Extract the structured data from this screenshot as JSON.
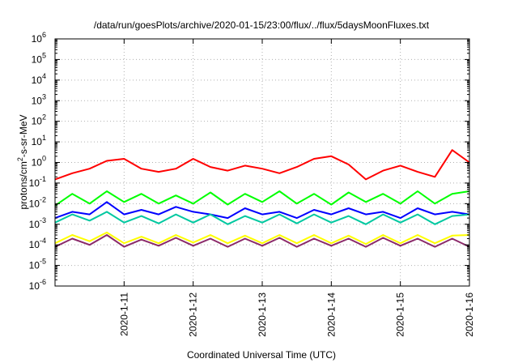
{
  "chart_data": {
    "type": "line",
    "title": "/data/run/goesPlots/archive/2020-01-15/23:00/flux/../flux/5daysMoonFluxes.txt",
    "xlabel": "Coordinated Universal Time (UTC)",
    "ylabel": "protons/cm²-s-sr-MeV",
    "y_scale": "log",
    "ylim": [
      1e-06,
      1000000.0
    ],
    "y_ticks": [
      {
        "value": 1e-06,
        "base": "10",
        "exp": "-6"
      },
      {
        "value": 1e-05,
        "base": "10",
        "exp": "-5"
      },
      {
        "value": 0.0001,
        "base": "10",
        "exp": "-4"
      },
      {
        "value": 0.001,
        "base": "10",
        "exp": "-3"
      },
      {
        "value": 0.01,
        "base": "10",
        "exp": "-2"
      },
      {
        "value": 0.1,
        "base": "10",
        "exp": "-1"
      },
      {
        "value": 1,
        "base": "10",
        "exp": "0"
      },
      {
        "value": 10,
        "base": "10",
        "exp": "1"
      },
      {
        "value": 100,
        "base": "10",
        "exp": "2"
      },
      {
        "value": 1000.0,
        "base": "10",
        "exp": "3"
      },
      {
        "value": 10000.0,
        "base": "10",
        "exp": "4"
      },
      {
        "value": 100000.0,
        "base": "10",
        "exp": "5"
      },
      {
        "value": 1000000.0,
        "base": "10",
        "exp": "6"
      }
    ],
    "xlim": [
      "2020-01-10T00:00",
      "2020-01-16T00:00"
    ],
    "x_ticks": [
      "2020-1-11",
      "2020-1-12",
      "2020-1-13",
      "2020-1-14",
      "2020-1-15",
      "2020-1-16"
    ],
    "x_tick_dates": [
      "2020-01-11",
      "2020-01-12",
      "2020-01-13",
      "2020-01-14",
      "2020-01-15",
      "2020-01-16"
    ],
    "grid": true,
    "legend": "none",
    "series": [
      {
        "color": "#ff0000",
        "x": [
          "2020-01-10T00:00",
          "2020-01-10T06:00",
          "2020-01-10T12:00",
          "2020-01-10T18:00",
          "2020-01-11T00:00",
          "2020-01-11T06:00",
          "2020-01-11T12:00",
          "2020-01-11T18:00",
          "2020-01-12T00:00",
          "2020-01-12T06:00",
          "2020-01-12T12:00",
          "2020-01-12T18:00",
          "2020-01-13T00:00",
          "2020-01-13T06:00",
          "2020-01-13T12:00",
          "2020-01-13T18:00",
          "2020-01-14T00:00",
          "2020-01-14T06:00",
          "2020-01-14T12:00",
          "2020-01-14T18:00",
          "2020-01-15T00:00",
          "2020-01-15T06:00",
          "2020-01-15T12:00",
          "2020-01-15T18:00",
          "2020-01-16T00:00"
        ],
        "values": [
          0.15,
          0.3,
          0.5,
          1.2,
          1.5,
          0.5,
          0.35,
          0.5,
          1.5,
          0.6,
          0.4,
          0.7,
          0.5,
          0.3,
          0.6,
          1.5,
          2.0,
          0.8,
          0.15,
          0.4,
          0.7,
          0.35,
          0.2,
          4.0,
          1.0
        ]
      },
      {
        "color": "#00ff00",
        "x": [
          "2020-01-10T00:00",
          "2020-01-10T06:00",
          "2020-01-10T12:00",
          "2020-01-10T18:00",
          "2020-01-11T00:00",
          "2020-01-11T06:00",
          "2020-01-11T12:00",
          "2020-01-11T18:00",
          "2020-01-12T00:00",
          "2020-01-12T06:00",
          "2020-01-12T12:00",
          "2020-01-12T18:00",
          "2020-01-13T00:00",
          "2020-01-13T06:00",
          "2020-01-13T12:00",
          "2020-01-13T18:00",
          "2020-01-14T00:00",
          "2020-01-14T06:00",
          "2020-01-14T12:00",
          "2020-01-14T18:00",
          "2020-01-15T00:00",
          "2020-01-15T06:00",
          "2020-01-15T12:00",
          "2020-01-15T18:00",
          "2020-01-16T00:00"
        ],
        "values": [
          0.008,
          0.03,
          0.01,
          0.04,
          0.012,
          0.03,
          0.01,
          0.025,
          0.01,
          0.035,
          0.009,
          0.03,
          0.012,
          0.04,
          0.01,
          0.03,
          0.009,
          0.035,
          0.012,
          0.03,
          0.01,
          0.04,
          0.01,
          0.03,
          0.04
        ]
      },
      {
        "color": "#0000ff",
        "x": [
          "2020-01-10T00:00",
          "2020-01-10T06:00",
          "2020-01-10T12:00",
          "2020-01-10T18:00",
          "2020-01-11T00:00",
          "2020-01-11T06:00",
          "2020-01-11T12:00",
          "2020-01-11T18:00",
          "2020-01-12T00:00",
          "2020-01-12T06:00",
          "2020-01-12T12:00",
          "2020-01-12T18:00",
          "2020-01-13T00:00",
          "2020-01-13T06:00",
          "2020-01-13T12:00",
          "2020-01-13T18:00",
          "2020-01-14T00:00",
          "2020-01-14T06:00",
          "2020-01-14T12:00",
          "2020-01-14T18:00",
          "2020-01-15T00:00",
          "2020-01-15T06:00",
          "2020-01-15T12:00",
          "2020-01-15T18:00",
          "2020-01-16T00:00"
        ],
        "values": [
          0.002,
          0.004,
          0.003,
          0.012,
          0.003,
          0.005,
          0.003,
          0.007,
          0.004,
          0.003,
          0.002,
          0.006,
          0.003,
          0.004,
          0.002,
          0.005,
          0.003,
          0.006,
          0.003,
          0.004,
          0.002,
          0.006,
          0.003,
          0.004,
          0.003
        ]
      },
      {
        "color": "#00c8a0",
        "x": [
          "2020-01-10T00:00",
          "2020-01-10T06:00",
          "2020-01-10T12:00",
          "2020-01-10T18:00",
          "2020-01-11T00:00",
          "2020-01-11T06:00",
          "2020-01-11T12:00",
          "2020-01-11T18:00",
          "2020-01-12T00:00",
          "2020-01-12T06:00",
          "2020-01-12T12:00",
          "2020-01-12T18:00",
          "2020-01-13T00:00",
          "2020-01-13T06:00",
          "2020-01-13T12:00",
          "2020-01-13T18:00",
          "2020-01-14T00:00",
          "2020-01-14T06:00",
          "2020-01-14T12:00",
          "2020-01-14T18:00",
          "2020-01-15T00:00",
          "2020-01-15T06:00",
          "2020-01-15T12:00",
          "2020-01-15T18:00",
          "2020-01-16T00:00"
        ],
        "values": [
          0.0012,
          0.003,
          0.0015,
          0.004,
          0.0012,
          0.0025,
          0.0011,
          0.003,
          0.0012,
          0.003,
          0.001,
          0.0025,
          0.0012,
          0.003,
          0.0011,
          0.003,
          0.0012,
          0.0025,
          0.001,
          0.003,
          0.0012,
          0.003,
          0.001,
          0.0025,
          0.003
        ]
      },
      {
        "color": "#ffff00",
        "x": [
          "2020-01-10T00:00",
          "2020-01-10T06:00",
          "2020-01-10T12:00",
          "2020-01-10T18:00",
          "2020-01-11T00:00",
          "2020-01-11T06:00",
          "2020-01-11T12:00",
          "2020-01-11T18:00",
          "2020-01-12T00:00",
          "2020-01-12T06:00",
          "2020-01-12T12:00",
          "2020-01-12T18:00",
          "2020-01-13T00:00",
          "2020-01-13T06:00",
          "2020-01-13T12:00",
          "2020-01-13T18:00",
          "2020-01-14T00:00",
          "2020-01-14T06:00",
          "2020-01-14T12:00",
          "2020-01-14T18:00",
          "2020-01-15T00:00",
          "2020-01-15T06:00",
          "2020-01-15T12:00",
          "2020-01-15T18:00",
          "2020-01-16T00:00"
        ],
        "values": [
          0.00012,
          0.0003,
          0.00015,
          0.0004,
          0.00012,
          0.00025,
          0.00012,
          0.0003,
          0.00013,
          0.0003,
          0.00012,
          0.00028,
          0.00012,
          0.0003,
          0.00012,
          0.0003,
          0.00012,
          0.00028,
          0.00011,
          0.0003,
          0.00012,
          0.0003,
          0.00012,
          0.00028,
          0.0003
        ]
      },
      {
        "color": "#8b2a6a",
        "x": [
          "2020-01-10T00:00",
          "2020-01-10T06:00",
          "2020-01-10T12:00",
          "2020-01-10T18:00",
          "2020-01-11T00:00",
          "2020-01-11T06:00",
          "2020-01-11T12:00",
          "2020-01-11T18:00",
          "2020-01-12T00:00",
          "2020-01-12T06:00",
          "2020-01-12T12:00",
          "2020-01-12T18:00",
          "2020-01-13T00:00",
          "2020-01-13T06:00",
          "2020-01-13T12:00",
          "2020-01-13T18:00",
          "2020-01-14T00:00",
          "2020-01-14T06:00",
          "2020-01-14T12:00",
          "2020-01-14T18:00",
          "2020-01-15T00:00",
          "2020-01-15T06:00",
          "2020-01-15T12:00",
          "2020-01-15T18:00",
          "2020-01-16T00:00"
        ],
        "values": [
          8e-05,
          0.0002,
          0.0001,
          0.0003,
          8e-05,
          0.00018,
          9e-05,
          0.00022,
          9e-05,
          0.0002,
          8e-05,
          0.0002,
          9e-05,
          0.00022,
          8e-05,
          0.0002,
          9e-05,
          0.0002,
          8e-05,
          0.00022,
          9e-05,
          0.0002,
          8e-05,
          0.0002,
          8e-05
        ]
      }
    ]
  }
}
